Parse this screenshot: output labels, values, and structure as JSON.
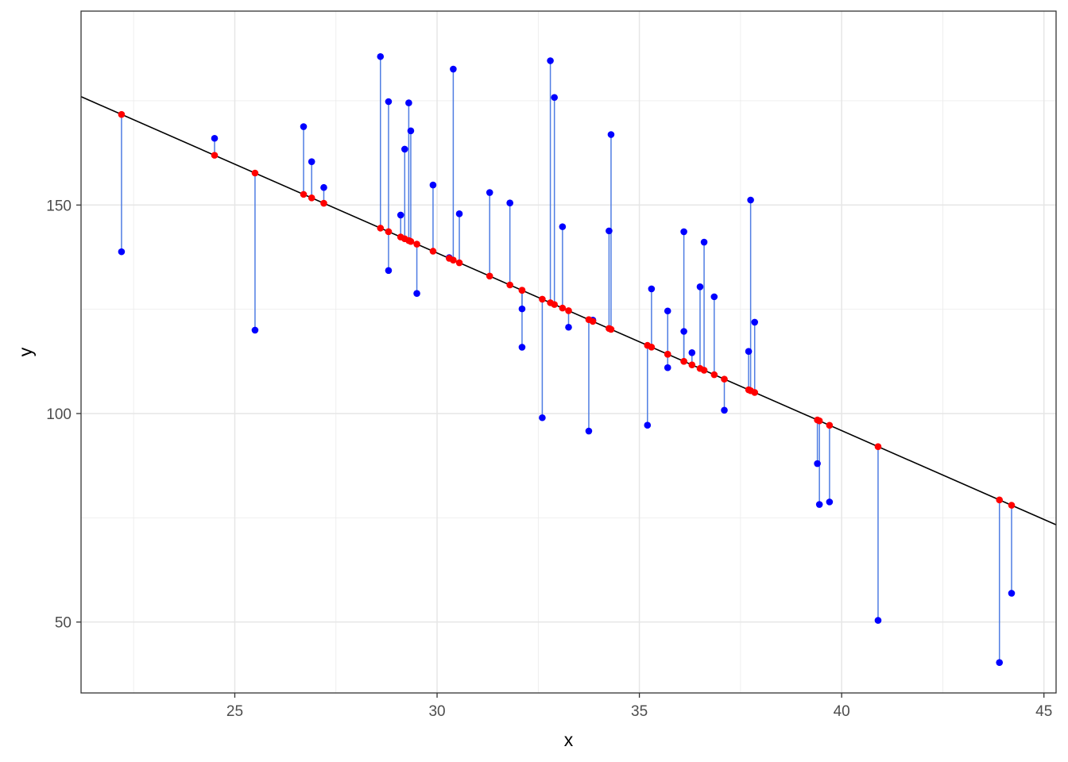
{
  "chart_data": {
    "type": "scatter",
    "xlabel": "x",
    "ylabel": "y",
    "xlim": [
      21.2,
      45.3
    ],
    "ylim": [
      33,
      196.5
    ],
    "x_ticks": [
      25,
      30,
      35,
      40,
      45
    ],
    "y_ticks": [
      50,
      100,
      150
    ],
    "grid": true,
    "legend": "none",
    "regression_line": {
      "intercept": 266.3,
      "slope": -4.26
    },
    "series": [
      {
        "x": [
          22.2,
          24.5,
          25.5,
          26.7,
          26.9,
          27.2,
          28.6,
          28.8,
          28.8,
          29.1,
          29.2,
          29.3,
          29.35,
          29.5,
          29.9,
          30.3,
          30.4,
          30.55,
          31.3,
          31.8,
          32.1,
          32.1,
          32.6,
          32.8,
          32.9,
          33.1,
          33.25,
          33.75,
          33.85,
          34.25,
          34.3,
          35.2,
          35.3,
          35.7,
          35.7,
          36.1,
          36.1,
          36.3,
          36.5,
          36.6,
          36.85,
          37.1,
          37.7,
          37.75,
          37.85,
          39.4,
          39.45,
          39.7,
          40.9,
          43.9,
          44.2
        ],
        "y": [
          138.8,
          166.0,
          120.0,
          168.8,
          160.4,
          154.2,
          185.6,
          174.8,
          134.3,
          147.6,
          163.4,
          174.5,
          167.8,
          128.8,
          154.8,
          137.4,
          182.6,
          147.9,
          153.0,
          150.5,
          125.1,
          115.9,
          99.0,
          184.6,
          175.8,
          144.8,
          120.7,
          95.8,
          122.4,
          143.8,
          166.9,
          97.2,
          129.9,
          124.6,
          111.0,
          143.6,
          119.7,
          114.6,
          130.4,
          141.1,
          128.0,
          100.8,
          114.9,
          151.2,
          121.9,
          88.0,
          78.2,
          78.8,
          50.4,
          40.3,
          56.9
        ]
      }
    ]
  }
}
